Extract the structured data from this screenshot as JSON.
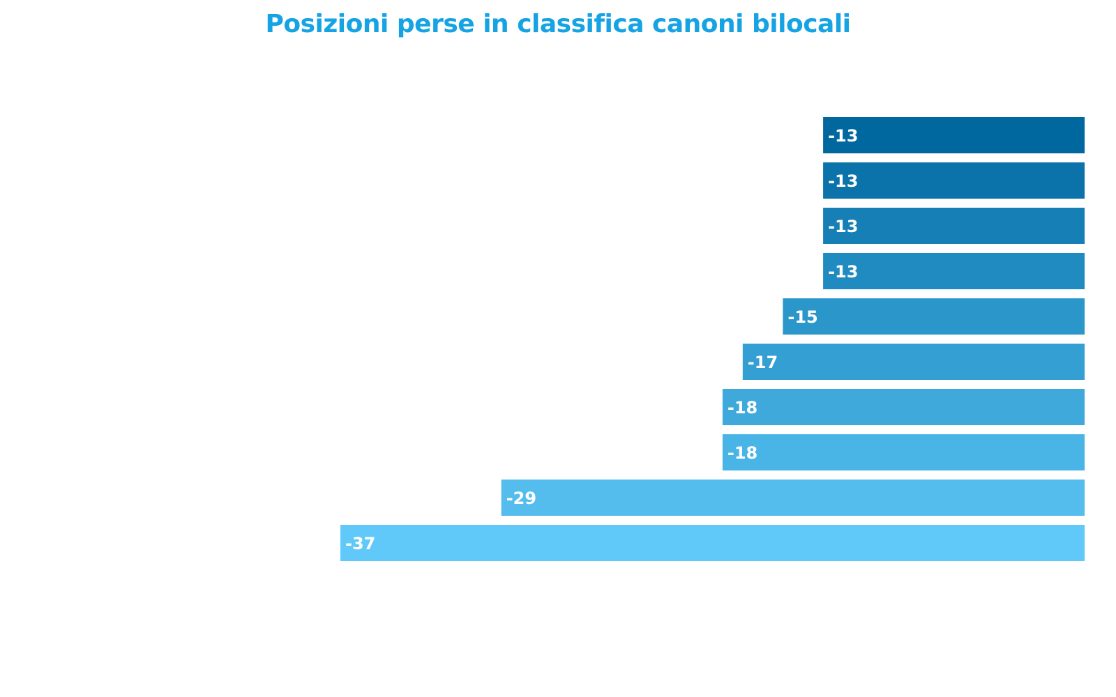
{
  "chart_data": {
    "type": "bar",
    "orientation": "horizontal",
    "title": "Posizioni perse in classifica canoni bilocali",
    "categories": [
      "",
      "",
      "",
      "",
      "",
      "",
      "",
      "",
      "",
      ""
    ],
    "values": [
      -13,
      -13,
      -13,
      -13,
      -15,
      -17,
      -18,
      -18,
      -29,
      -37
    ],
    "labels": [
      "-13",
      "-13",
      "-13",
      "-13",
      "-15",
      "-17",
      "-18",
      "-18",
      "-29",
      "-37"
    ],
    "colors": [
      "#01689f",
      "#0b72aa",
      "#167fb5",
      "#1f8bc0",
      "#2a96c9",
      "#349fd2",
      "#3fa9dc",
      "#49b4e6",
      "#54bdee",
      "#61c9f9"
    ],
    "xlim": [
      -37,
      0
    ],
    "grid": false,
    "legend": "none"
  }
}
